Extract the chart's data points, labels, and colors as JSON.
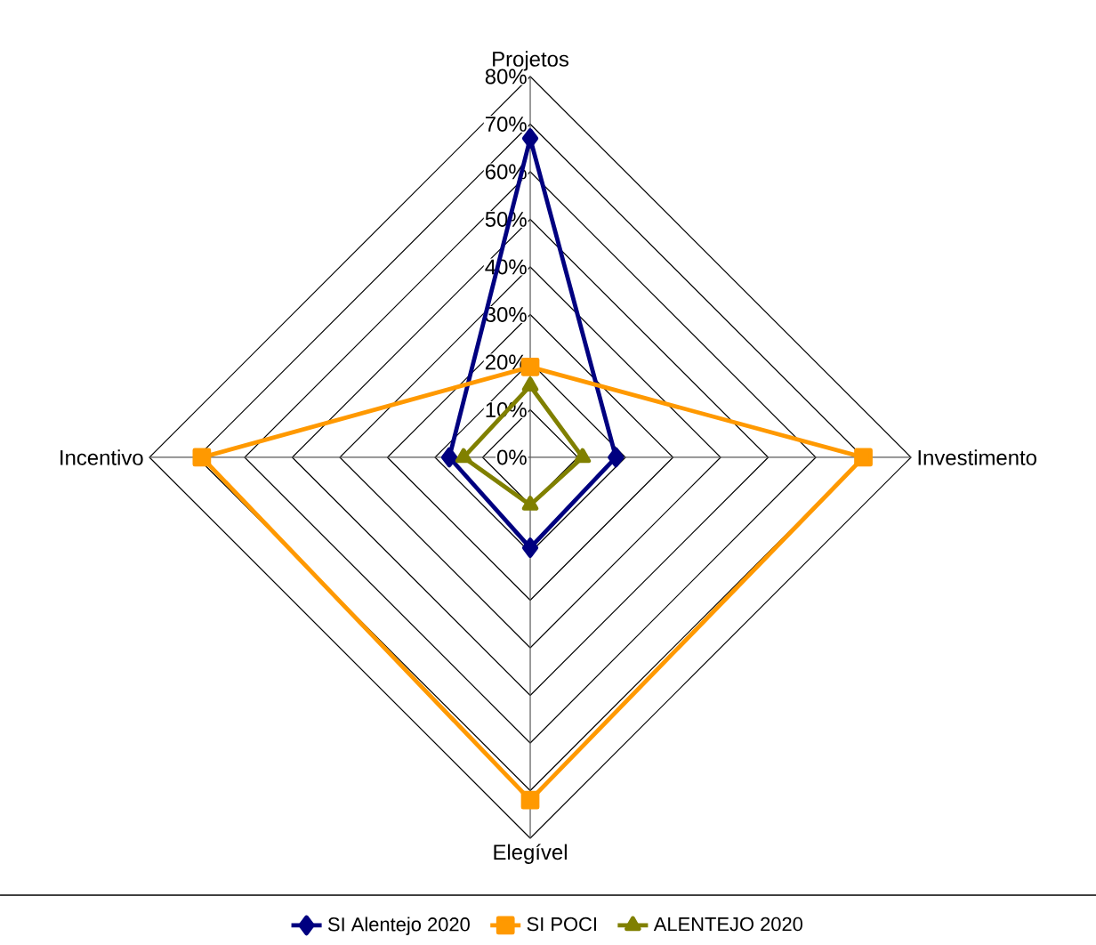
{
  "chart_data": {
    "type": "radar",
    "categories": [
      "Projetos",
      "Investimento",
      "Elegível",
      "Incentivo"
    ],
    "series": [
      {
        "name": "SI Alentejo 2020",
        "color": "#000080",
        "marker": "diamond",
        "values": [
          67,
          18,
          19,
          17
        ]
      },
      {
        "name": "SI POCI",
        "color": "#ff9900",
        "marker": "square",
        "values": [
          19,
          70,
          72,
          69
        ]
      },
      {
        "name": "ALENTEJO 2020",
        "color": "#808000",
        "marker": "triangle",
        "values": [
          15,
          11,
          10,
          14
        ]
      }
    ],
    "ylim": [
      0,
      80
    ],
    "yticks": [
      {
        "value": 0,
        "label": "0%"
      },
      {
        "value": 10,
        "label": "10%"
      },
      {
        "value": 20,
        "label": "20%"
      },
      {
        "value": 30,
        "label": "30%"
      },
      {
        "value": 40,
        "label": "40%"
      },
      {
        "value": 50,
        "label": "50%"
      },
      {
        "value": 60,
        "label": "60%"
      },
      {
        "value": 70,
        "label": "70%"
      },
      {
        "value": 80,
        "label": "80%"
      }
    ],
    "grid": true,
    "legend": "bottom"
  }
}
